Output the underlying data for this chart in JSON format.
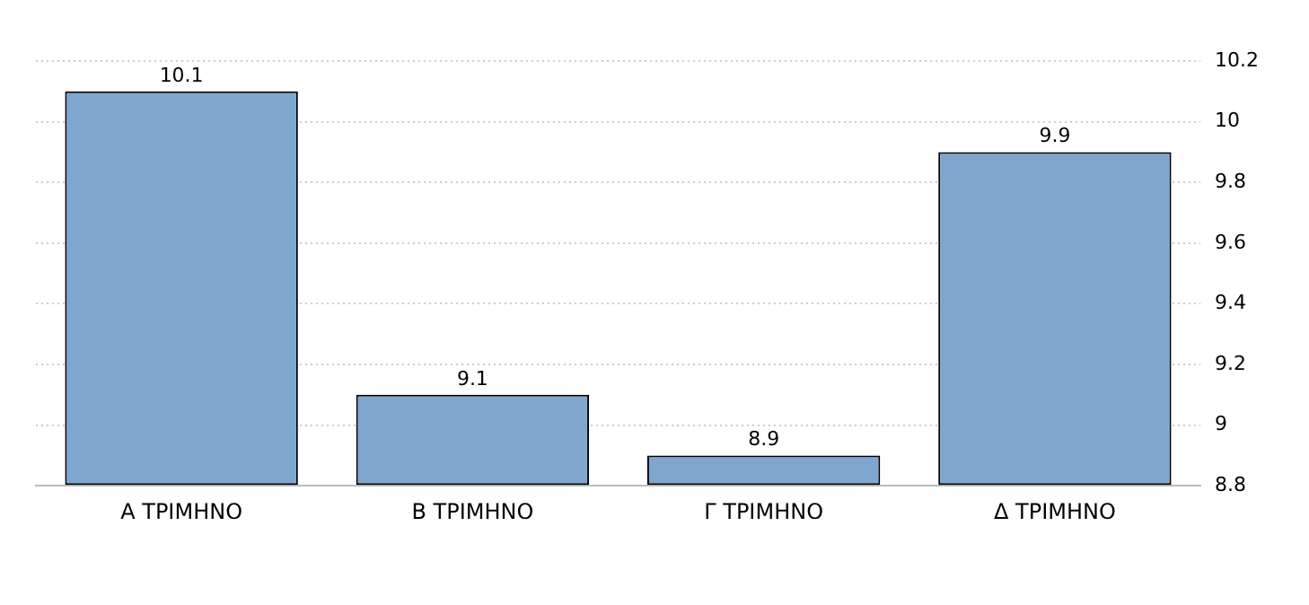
{
  "chart_data": {
    "type": "bar",
    "categories": [
      "Α ΤΡΙΜΗΝΟ",
      "Β ΤΡΙΜΗΝΟ",
      "Γ ΤΡΙΜΗΝΟ",
      "Δ ΤΡΙΜΗΝΟ"
    ],
    "values": [
      10.1,
      9.1,
      8.9,
      9.9
    ],
    "color": "#7ea6cf",
    "ylim": [
      8.8,
      10.2
    ],
    "yticks": [
      8.8,
      9,
      9.2,
      9.4,
      9.6,
      9.8,
      10,
      10.2
    ],
    "grid": "y",
    "data_labels": true,
    "legend": false
  }
}
